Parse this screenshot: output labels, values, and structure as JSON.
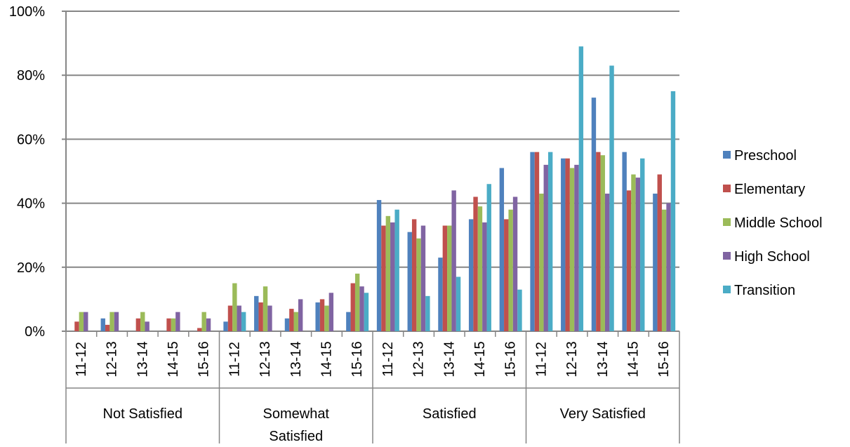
{
  "chart_data": {
    "type": "bar",
    "title": "",
    "xlabel": "",
    "ylabel": "",
    "ylim": [
      0,
      1
    ],
    "yticks": [
      0,
      0.2,
      0.4,
      0.6,
      0.8,
      1.0
    ],
    "ytick_labels": [
      "0%",
      "20%",
      "40%",
      "60%",
      "80%",
      "100%"
    ],
    "grid": true,
    "legend_position": "right",
    "groups": [
      {
        "label": "Not Satisfied",
        "label_lines": [
          "Not Satisfied"
        ]
      },
      {
        "label": "Somewhat Satisfied",
        "label_lines": [
          "Somewhat",
          "Satisfied"
        ]
      },
      {
        "label": "Satisfied",
        "label_lines": [
          "Satisfied"
        ]
      },
      {
        "label": "Very Satisfied",
        "label_lines": [
          "Very Satisfied"
        ]
      }
    ],
    "years": [
      "11-12",
      "12-13",
      "13-14",
      "14-15",
      "15-16"
    ],
    "series": [
      {
        "name": "Preschool",
        "color": "#4F81BD",
        "values": [
          0.0,
          0.04,
          0.0,
          0.0,
          0.0,
          0.03,
          0.11,
          0.04,
          0.09,
          0.06,
          0.41,
          0.31,
          0.23,
          0.35,
          0.51,
          0.56,
          0.54,
          0.73,
          0.56,
          0.43
        ]
      },
      {
        "name": "Elementary",
        "color": "#C0504D",
        "values": [
          0.03,
          0.02,
          0.04,
          0.04,
          0.01,
          0.08,
          0.09,
          0.07,
          0.1,
          0.15,
          0.33,
          0.35,
          0.33,
          0.42,
          0.35,
          0.56,
          0.54,
          0.56,
          0.44,
          0.49
        ]
      },
      {
        "name": "Middle School",
        "color": "#9BBB59",
        "values": [
          0.06,
          0.06,
          0.06,
          0.04,
          0.06,
          0.15,
          0.14,
          0.06,
          0.08,
          0.18,
          0.36,
          0.29,
          0.33,
          0.39,
          0.38,
          0.43,
          0.51,
          0.55,
          0.49,
          0.38
        ]
      },
      {
        "name": "High School",
        "color": "#8064A2",
        "values": [
          0.06,
          0.06,
          0.03,
          0.06,
          0.04,
          0.08,
          0.08,
          0.1,
          0.12,
          0.14,
          0.34,
          0.33,
          0.44,
          0.34,
          0.42,
          0.52,
          0.52,
          0.43,
          0.48,
          0.4
        ]
      },
      {
        "name": "Transition",
        "color": "#4BACC6",
        "values": [
          0.0,
          0.0,
          0.0,
          0.0,
          0.0,
          0.06,
          0.0,
          0.0,
          0.0,
          0.12,
          0.38,
          0.11,
          0.17,
          0.46,
          0.13,
          0.56,
          0.89,
          0.83,
          0.54,
          0.75
        ]
      }
    ]
  }
}
